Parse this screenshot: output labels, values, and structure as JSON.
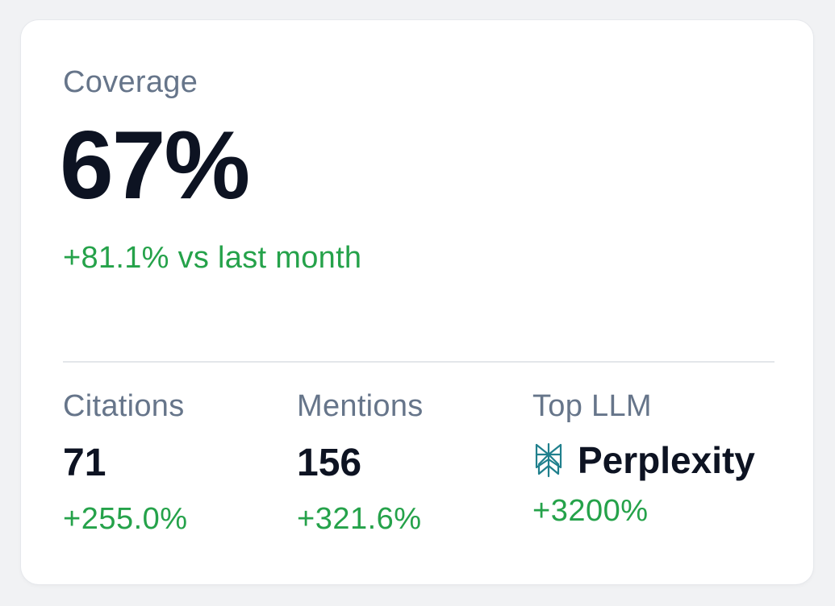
{
  "coverage": {
    "label": "Coverage",
    "value": "67%",
    "change": "+81.1% vs last month"
  },
  "stats": {
    "citations": {
      "label": "Citations",
      "value": "71",
      "change": "+255.0%"
    },
    "mentions": {
      "label": "Mentions",
      "value": "156",
      "change": "+321.6%"
    },
    "top_llm": {
      "label": "Top LLM",
      "name": "Perplexity",
      "icon": "perplexity-logo-icon",
      "change": "+3200%"
    }
  },
  "colors": {
    "label": "#66758a",
    "value": "#0d1322",
    "positive": "#25a24a",
    "icon": "#20808d"
  }
}
